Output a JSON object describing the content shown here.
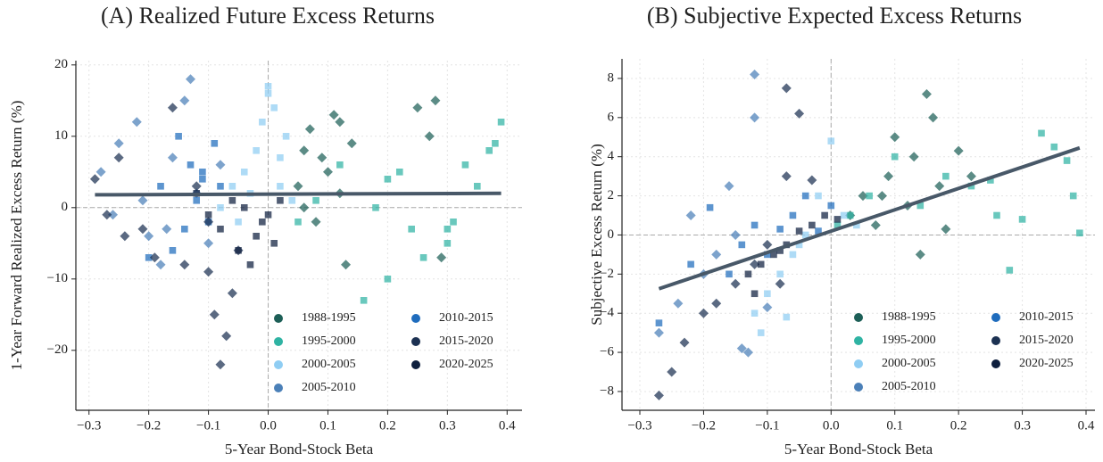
{
  "chart_data": [
    {
      "type": "scatter",
      "title": "(A) Realized Future Excess Returns",
      "x_label": "5-Year Bond-Stock Beta",
      "y_label": "1-Year Forward Realized Excess Return (%)",
      "xlim": [
        -0.322,
        0.425
      ],
      "ylim": [
        -28.4,
        20.6
      ],
      "xticks": [
        {
          "value": -0.3,
          "label": "−0.3"
        },
        {
          "value": -0.2,
          "label": "−0.2"
        },
        {
          "value": -0.1,
          "label": "−0.1"
        },
        {
          "value": 0,
          "label": "0.0"
        },
        0.1,
        0.2,
        0.3,
        0.4
      ],
      "yticks": [
        {
          "value": -20,
          "label": "−20"
        },
        {
          "value": -10,
          "label": "−10"
        },
        0,
        10,
        20
      ],
      "grid": true,
      "legend": "lower right",
      "hline": 0,
      "vline": 0,
      "series": [
        {
          "name": "1988-1995",
          "color": "#1d5f57",
          "marker": "diamond",
          "x": [
            0.05,
            0.06,
            0.07,
            0.08,
            0.1,
            0.11,
            0.12,
            0.13,
            0.14,
            0.25,
            0.27,
            0.28,
            0.29,
            0.06,
            0.09,
            0.12
          ],
          "y": [
            3,
            8,
            11,
            -2,
            5,
            13,
            12,
            -8,
            9,
            14,
            10,
            15,
            -7,
            0,
            7,
            2
          ]
        },
        {
          "name": "1995-2000",
          "color": "#2fb3a3",
          "marker": "square",
          "x": [
            0.05,
            0.08,
            0.12,
            0.18,
            0.2,
            0.22,
            0.24,
            0.3,
            0.31,
            0.33,
            0.35,
            0.37,
            0.38,
            0.39,
            0.16,
            0.2,
            0.26,
            0.3
          ],
          "y": [
            -2,
            1,
            6,
            0,
            4,
            5,
            -3,
            -5,
            -2,
            6,
            3,
            8,
            9,
            12,
            -13,
            -10,
            -7,
            -3
          ]
        },
        {
          "name": "2000-2005",
          "color": "#8fcdf3",
          "marker": "square",
          "x": [
            -0.08,
            -0.06,
            -0.04,
            -0.02,
            -0.01,
            0.0,
            0.01,
            0.02,
            0.03,
            0.04,
            -0.05,
            0.0,
            0.02,
            -0.03
          ],
          "y": [
            0,
            3,
            5,
            8,
            12,
            17,
            14,
            3,
            10,
            1,
            -2,
            16,
            7,
            2
          ]
        },
        {
          "name": "2005-2010",
          "color": "#4b80b8",
          "marker": "diamond",
          "x": [
            -0.28,
            -0.25,
            -0.22,
            -0.2,
            -0.18,
            -0.16,
            -0.14,
            -0.13,
            -0.12,
            -0.1,
            -0.08,
            -0.17,
            -0.21,
            -0.26
          ],
          "y": [
            5,
            9,
            12,
            -4,
            -8,
            7,
            15,
            18,
            2,
            -5,
            6,
            -3,
            1,
            -1
          ]
        },
        {
          "name": "2010-2015",
          "color": "#1f6cbd",
          "marker": "square",
          "x": [
            -0.2,
            -0.18,
            -0.15,
            -0.13,
            -0.12,
            -0.11,
            -0.1,
            -0.09,
            -0.08,
            -0.14,
            -0.16,
            -0.11
          ],
          "y": [
            -7,
            3,
            10,
            6,
            1,
            4,
            -2,
            9,
            3,
            -3,
            -6,
            5
          ]
        },
        {
          "name": "2015-2020",
          "color": "#1c3152",
          "marker": "diamond",
          "x": [
            -0.29,
            -0.27,
            -0.24,
            -0.21,
            -0.19,
            -0.16,
            -0.14,
            -0.1,
            -0.09,
            -0.08,
            -0.07,
            -0.06,
            -0.05,
            -0.1,
            -0.12,
            -0.25
          ],
          "y": [
            4,
            -1,
            -4,
            -3,
            -7,
            14,
            -8,
            -9,
            -15,
            -22,
            -18,
            -12,
            -6,
            -2,
            3,
            7
          ]
        },
        {
          "name": "2020-2025",
          "color": "#0e1f3e",
          "marker": "square",
          "x": [
            -0.12,
            -0.1,
            -0.08,
            -0.06,
            -0.05,
            -0.04,
            -0.03,
            -0.02,
            -0.01,
            0.0,
            0.01,
            0.02
          ],
          "y": [
            2,
            -1,
            -3,
            1,
            -6,
            0,
            -8,
            -4,
            -2,
            -1,
            -5,
            1
          ]
        }
      ],
      "fit": {
        "color": "#485868",
        "x": [
          -0.29,
          0.39
        ],
        "y": [
          1.8,
          2.0
        ]
      }
    },
    {
      "type": "scatter",
      "title": "(B) Subjective Expected Excess Returns",
      "x_label": "5-Year Bond-Stock Beta",
      "y_label": "Subjective Excess Return (%)",
      "xlim": [
        -0.328,
        0.414
      ],
      "ylim": [
        -8.96,
        9.0
      ],
      "xticks": [
        {
          "value": -0.3,
          "label": "−0.3"
        },
        {
          "value": -0.2,
          "label": "−0.2"
        },
        {
          "value": -0.1,
          "label": "−0.1"
        },
        {
          "value": 0,
          "label": "0.0"
        },
        0.1,
        0.2,
        0.3,
        0.4
      ],
      "yticks": [
        {
          "value": -8,
          "label": "−8"
        },
        {
          "value": -6,
          "label": "−6"
        },
        {
          "value": -4,
          "label": "−4"
        },
        {
          "value": -2,
          "label": "−2"
        },
        0,
        2,
        4,
        6,
        8
      ],
      "grid": true,
      "legend": "lower right",
      "hline": 0,
      "vline": 0,
      "series": [
        {
          "name": "1988-1995",
          "color": "#1d5f57",
          "marker": "diamond",
          "x": [
            0.03,
            0.05,
            0.07,
            0.09,
            0.1,
            0.12,
            0.13,
            0.15,
            0.16,
            0.17,
            0.2,
            0.22,
            0.08,
            0.14,
            0.18
          ],
          "y": [
            1,
            2,
            0.5,
            3,
            5,
            1.5,
            4,
            7.2,
            6,
            2.5,
            4.3,
            3,
            2,
            -1,
            0.3
          ]
        },
        {
          "name": "1995-2000",
          "color": "#2fb3a3",
          "marker": "square",
          "x": [
            0.01,
            0.03,
            0.06,
            0.1,
            0.14,
            0.18,
            0.22,
            0.26,
            0.3,
            0.33,
            0.35,
            0.37,
            0.38,
            0.39,
            0.25,
            0.28
          ],
          "y": [
            0.5,
            1,
            2,
            4,
            1.5,
            3,
            2.5,
            1,
            0.8,
            5.2,
            4.5,
            3.8,
            2,
            0.1,
            2.8,
            -1.8
          ]
        },
        {
          "name": "2000-2005",
          "color": "#8fcdf3",
          "marker": "square",
          "x": [
            -0.12,
            -0.1,
            -0.08,
            -0.06,
            -0.04,
            -0.02,
            0.0,
            0.02,
            0.04,
            -0.07,
            -0.11,
            -0.05
          ],
          "y": [
            -4,
            -3,
            -2,
            -1,
            0,
            2,
            4.8,
            1,
            0.5,
            -4.2,
            -5,
            -0.5
          ]
        },
        {
          "name": "2005-2010",
          "color": "#4b80b8",
          "marker": "diamond",
          "x": [
            -0.27,
            -0.24,
            -0.2,
            -0.18,
            -0.15,
            -0.13,
            -0.12,
            -0.12,
            -0.1,
            -0.14,
            -0.22,
            -0.16
          ],
          "y": [
            -5,
            -3.5,
            -2,
            -1,
            0,
            -6,
            8.2,
            6,
            -3.7,
            -5.8,
            1,
            2.5
          ]
        },
        {
          "name": "2010-2015",
          "color": "#1f6cbd",
          "marker": "square",
          "x": [
            -0.27,
            -0.22,
            -0.19,
            -0.16,
            -0.14,
            -0.12,
            -0.1,
            -0.08,
            -0.06,
            -0.04,
            -0.02,
            0.0
          ],
          "y": [
            -4.5,
            -1.5,
            1.4,
            -2,
            -0.5,
            0.5,
            -1,
            0.3,
            1,
            2,
            0.2,
            1.5
          ]
        },
        {
          "name": "2015-2020",
          "color": "#1c3152",
          "marker": "diamond",
          "x": [
            -0.27,
            -0.25,
            -0.23,
            -0.2,
            -0.18,
            -0.15,
            -0.12,
            -0.1,
            -0.07,
            -0.05,
            -0.03,
            -0.07,
            -0.08
          ],
          "y": [
            -8.2,
            -7,
            -5.5,
            -4,
            -3.5,
            -2.5,
            -1.5,
            -0.5,
            7.5,
            6.2,
            2.8,
            3,
            -2.5
          ]
        },
        {
          "name": "2020-2025",
          "color": "#0e1f3e",
          "marker": "square",
          "x": [
            -0.13,
            -0.11,
            -0.09,
            -0.07,
            -0.05,
            -0.03,
            -0.01,
            0.01,
            -0.12,
            -0.08
          ],
          "y": [
            -2,
            -1.5,
            -1,
            -0.5,
            0.2,
            0.5,
            1,
            0.8,
            -3,
            -0.8
          ]
        }
      ],
      "fit": {
        "color": "#485868",
        "x": [
          -0.27,
          0.39
        ],
        "y": [
          -2.75,
          4.45
        ]
      }
    }
  ]
}
